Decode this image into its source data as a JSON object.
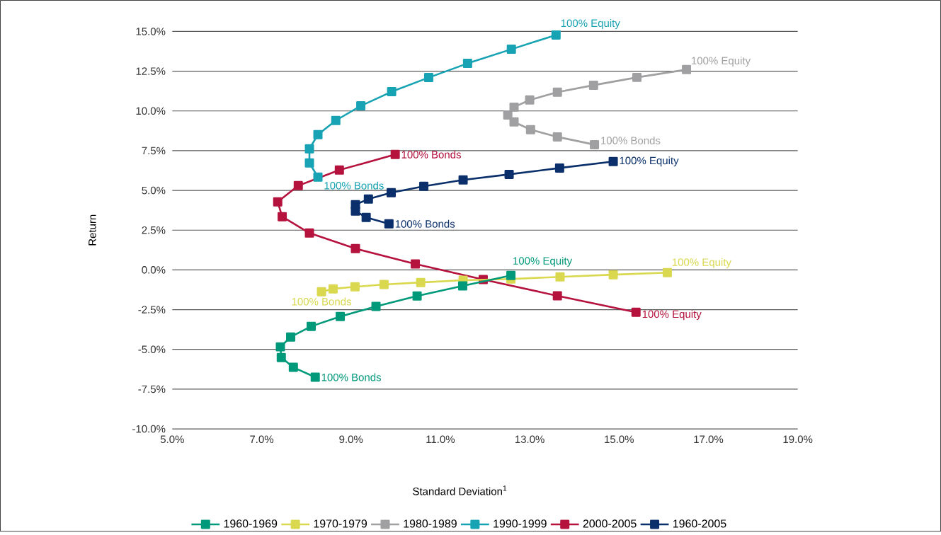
{
  "chart_data": {
    "type": "line",
    "xlabel": "Standard Deviation$^{1}$",
    "ylabel": "Return",
    "xlim": [
      5,
      19
    ],
    "ylim": [
      -10,
      15
    ],
    "xticks": [
      {
        "value": 5,
        "label": "5.0%"
      },
      {
        "value": 7,
        "label": "7.0%"
      },
      {
        "value": 9,
        "label": "9.0%"
      },
      {
        "value": 11,
        "label": "11.0%"
      },
      {
        "value": 13,
        "label": "13.0%"
      },
      {
        "value": 15,
        "label": "15.0%"
      },
      {
        "value": 17,
        "label": "17.0%"
      },
      {
        "value": 19,
        "label": "19.0%"
      }
    ],
    "yticks": [
      {
        "value": 15,
        "label": "15.0%"
      },
      {
        "value": 12.5,
        "label": "12.5%"
      },
      {
        "value": 10,
        "label": "10.0%"
      },
      {
        "value": 7.5,
        "label": "7.5%"
      },
      {
        "value": 5,
        "label": "5.0%"
      },
      {
        "value": 2.5,
        "label": "2.5%"
      },
      {
        "value": 0,
        "label": "0.0%"
      },
      {
        "value": -2.5,
        "label": "-2.5%"
      },
      {
        "value": -5,
        "label": "-5.0%"
      },
      {
        "value": -7.5,
        "label": "-7.5%"
      },
      {
        "value": -10,
        "label": "-10.0%"
      }
    ],
    "grid": "y",
    "legend": "bottom",
    "marker": "square",
    "line_style": "solid",
    "series": [
      {
        "name": "1960-1969",
        "color": "#00997a",
        "x": [
          8.2,
          7.71,
          7.44,
          7.42,
          7.65,
          8.11,
          8.76,
          9.56,
          10.48,
          11.5,
          12.58
        ],
        "values": [
          -6.75,
          -6.13,
          -5.51,
          -4.84,
          -4.22,
          -3.55,
          -2.93,
          -2.3,
          -1.64,
          -1.01,
          -0.35
        ]
      },
      {
        "name": "1970-1979",
        "color": "#d9d84f",
        "x": [
          8.34,
          8.6,
          9.09,
          9.74,
          10.56,
          11.51,
          12.58,
          13.68,
          14.87,
          16.08
        ],
        "values": [
          -1.37,
          -1.19,
          -1.06,
          -0.92,
          -0.79,
          -0.65,
          -0.57,
          -0.44,
          -0.3,
          -0.17
        ]
      },
      {
        "name": "1980-1989",
        "color": "#a0a0a2",
        "x": [
          14.45,
          13.62,
          13.02,
          12.65,
          12.51,
          12.65,
          13.0,
          13.62,
          14.43,
          15.4,
          16.51
        ],
        "values": [
          7.88,
          8.37,
          8.82,
          9.31,
          9.75,
          10.24,
          10.69,
          11.18,
          11.62,
          12.11,
          12.6
        ]
      },
      {
        "name": "1990-1999",
        "color": "#17a3b3",
        "x": [
          8.26,
          8.07,
          8.07,
          8.26,
          8.66,
          9.22,
          9.91,
          10.74,
          11.61,
          12.59,
          13.59
        ],
        "values": [
          5.84,
          6.73,
          7.62,
          8.51,
          9.4,
          10.32,
          11.21,
          12.1,
          12.99,
          13.88,
          14.78
        ]
      },
      {
        "name": "2000-2005",
        "color": "#b5123e",
        "x": [
          9.99,
          8.74,
          7.82,
          7.36,
          7.46,
          8.07,
          9.1,
          10.44,
          11.96,
          13.62,
          15.38
        ],
        "values": [
          7.26,
          6.28,
          5.3,
          4.28,
          3.35,
          2.32,
          1.34,
          0.37,
          -0.61,
          -1.63,
          -2.66
        ]
      },
      {
        "name": "1960-2005",
        "color": "#0a2f6b",
        "x": [
          9.85,
          9.34,
          9.1,
          9.1,
          9.39,
          9.9,
          10.63,
          11.51,
          12.54,
          13.67,
          14.87
        ],
        "values": [
          2.9,
          3.3,
          3.7,
          4.1,
          4.46,
          4.86,
          5.26,
          5.66,
          6.01,
          6.41,
          6.82
        ]
      }
    ],
    "annotations": [
      {
        "text": "100% Equity",
        "x": 12.58,
        "y": -0.35
      },
      {
        "text": "100% Bonds",
        "x": 8.2,
        "y": -6.75
      },
      {
        "text": "100% Equity",
        "x": 16.08,
        "y": -0.17
      },
      {
        "text": "100% Bonds",
        "x": 8.34,
        "y": -1.37
      },
      {
        "text": "100% Bonds",
        "x": 14.45,
        "y": 7.88
      },
      {
        "text": "100% Equity",
        "x": 16.51,
        "y": 12.6
      },
      {
        "text": "100% Bonds",
        "x": 8.26,
        "y": 5.84
      },
      {
        "text": "100% Equity",
        "x": 13.59,
        "y": 14.78
      },
      {
        "text": "100% Bonds",
        "x": 9.99,
        "y": 7.26
      },
      {
        "text": "100% Equity",
        "x": 15.38,
        "y": -2.66
      },
      {
        "text": "100% Bonds",
        "x": 9.85,
        "y": 2.9
      },
      {
        "text": "100% Equity",
        "x": 14.87,
        "y": 6.82
      }
    ]
  }
}
